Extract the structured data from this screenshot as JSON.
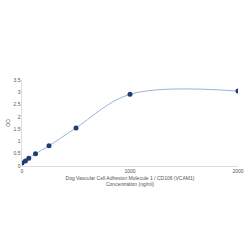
{
  "chart_data": {
    "type": "line",
    "xlabel": [
      "Dog Vascular Cell Adhesion Molecule 1 / CD106 (VCAM1)",
      "Concentration (ng/ml)"
    ],
    "ylabel": "OD",
    "x": [
      0,
      31.25,
      62.5,
      125,
      250,
      500,
      1000,
      2000
    ],
    "values": [
      0.12,
      0.2,
      0.32,
      0.5,
      0.82,
      1.55,
      2.92,
      3.05
    ],
    "color": "#1f3c73",
    "line_color": "#9ab4d8",
    "marker": "circle",
    "xlim": [
      0,
      2000
    ],
    "xticks": [
      0,
      1000,
      2000
    ],
    "ylim": [
      0,
      3.5
    ],
    "yticks": [
      0,
      0.5,
      1,
      1.5,
      2,
      2.5,
      3,
      3.5
    ],
    "grid": false
  }
}
